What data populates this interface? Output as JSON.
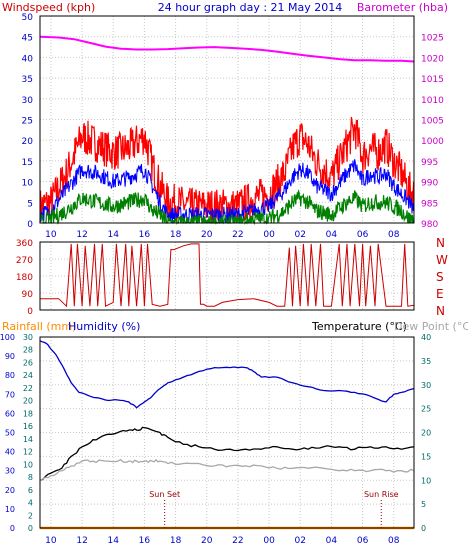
{
  "colors": {
    "background": "#ffffff",
    "plot_border": "#000000",
    "grid": "#c8c8c8",
    "wind_gust": "#ff0000",
    "wind_avg": "#0000ff",
    "wind_low": "#008000",
    "barometer": "#ff00ff",
    "direction": "#cc0000",
    "humidity": "#0000cc",
    "temperature": "#000000",
    "dew_point": "#a8a8a8",
    "rainfall": "#ff8c00",
    "sun_marker": "#990000",
    "axis_blue": "#0000cc",
    "axis_teal": "#006a6a",
    "axis_red": "#cc0000",
    "axis_magenta": "#cc00cc",
    "rain_label": "#ff8c00",
    "humidity_label": "#0000cc",
    "dew_label": "#a8a8a8"
  },
  "chart_data": [
    {
      "type": "line",
      "title": "24 hour graph day : 21 May 2014",
      "ylabel_left": "Windspeed (kph)",
      "ylabel_right": "Barometer (hba)",
      "ylim": [
        0,
        50
      ],
      "yticks": [
        0,
        5,
        10,
        15,
        20,
        25,
        30,
        35,
        40,
        45,
        50
      ],
      "ylim_right": [
        980,
        1030
      ],
      "yticks_right": [
        980,
        985,
        990,
        995,
        1000,
        1005,
        1010,
        1015,
        1020,
        1025
      ],
      "xticks": [
        "10",
        "12",
        "14",
        "16",
        "18",
        "20",
        "22",
        "00",
        "02",
        "04",
        "06",
        "08"
      ],
      "x_hours": [
        9.3,
        33.3
      ],
      "grid": true,
      "series": [
        {
          "key": "barometer",
          "axis": "right",
          "x": [
            9.3,
            10.5,
            11.5,
            12.5,
            13.5,
            14.5,
            15.5,
            16.5,
            17.5,
            18.5,
            19.5,
            20.5,
            21.5,
            22.5,
            23.5,
            24.5,
            25.5,
            26.5,
            27.5,
            28.5,
            29.5,
            30.5,
            31.5,
            32.5,
            33.3
          ],
          "values": [
            1025.0,
            1024.8,
            1024.4,
            1023.5,
            1022.6,
            1022.1,
            1021.9,
            1021.9,
            1022.0,
            1022.2,
            1022.4,
            1022.5,
            1022.3,
            1022.1,
            1021.8,
            1021.4,
            1020.9,
            1020.4,
            1020.0,
            1019.6,
            1019.3,
            1019.3,
            1019.2,
            1019.2,
            1019.0
          ]
        },
        {
          "key": "wind_gust",
          "axis": "left",
          "x": [
            9.3,
            10,
            11,
            12,
            13,
            14,
            15,
            16,
            16.5,
            17,
            17.5,
            18,
            19,
            20,
            21,
            22,
            23,
            24,
            25,
            25.5,
            26,
            26.5,
            27,
            28,
            29,
            29.5,
            30,
            30.5,
            31,
            31.5,
            32,
            32.5,
            33,
            33.3
          ],
          "values": [
            4,
            5,
            12,
            21,
            19,
            17,
            18,
            21,
            14,
            9,
            5,
            5,
            4,
            4,
            4,
            4,
            6,
            7,
            12,
            18,
            21,
            19,
            15,
            11,
            19,
            23,
            16,
            18,
            17,
            19,
            15,
            12,
            8,
            7
          ]
        },
        {
          "key": "wind_avg",
          "axis": "left",
          "x": [
            9.3,
            10,
            11,
            12,
            13,
            14,
            15,
            16,
            16.5,
            17,
            17.5,
            18,
            19,
            20,
            21,
            22,
            23,
            24,
            25,
            25.5,
            26,
            26.5,
            27,
            28,
            29,
            29.5,
            30,
            30.5,
            31,
            31.5,
            32,
            32.5,
            33,
            33.3
          ],
          "values": [
            2,
            3,
            8,
            13,
            12,
            10,
            11,
            13,
            9,
            5,
            2,
            2,
            2,
            2,
            2,
            2,
            3,
            4,
            8,
            11,
            13,
            12,
            9,
            7,
            12,
            14,
            10,
            12,
            11,
            12,
            9,
            7,
            5,
            3
          ]
        },
        {
          "key": "wind_low",
          "axis": "left",
          "x": [
            9.3,
            10,
            11,
            12,
            13,
            14,
            15,
            16,
            16.5,
            17,
            17.5,
            18,
            19,
            20,
            21,
            22,
            23,
            24,
            25,
            25.5,
            26,
            26.5,
            27,
            28,
            29,
            29.5,
            30,
            30.5,
            31,
            31.5,
            32,
            32.5,
            33,
            33.3
          ],
          "values": [
            0,
            1,
            3,
            6,
            5,
            4,
            5,
            6,
            3,
            2,
            0,
            0,
            0,
            0,
            0,
            0,
            1,
            1,
            3,
            5,
            6,
            5,
            3,
            2,
            5,
            6,
            4,
            5,
            5,
            5,
            4,
            3,
            1,
            1
          ]
        }
      ]
    },
    {
      "type": "line",
      "ylabel_right": [
        "N",
        "W",
        "S",
        "E",
        "N"
      ],
      "ylim": [
        0,
        360
      ],
      "yticks": [
        0,
        90,
        180,
        270,
        360
      ],
      "x_hours": [
        9.3,
        33.3
      ],
      "grid": true,
      "series": [
        {
          "key": "direction",
          "x": [
            9.3,
            10.5,
            11.0,
            11.3,
            11.5,
            11.7,
            12.0,
            12.2,
            12.5,
            12.8,
            13.0,
            13.3,
            13.5,
            14.0,
            14.2,
            14.5,
            14.8,
            15.0,
            15.2,
            15.5,
            15.8,
            16.0,
            16.2,
            16.5,
            17.0,
            17.5,
            17.7,
            17.9,
            18.5,
            19.0,
            19.5,
            19.6,
            19.8,
            20.0,
            20.5,
            21.0,
            22.0,
            23.0,
            24.0,
            24.5,
            25.0,
            25.3,
            25.5,
            25.7,
            26.0,
            26.2,
            26.5,
            26.7,
            27.0,
            27.3,
            27.5,
            28.0,
            28.5,
            28.7,
            29.0,
            29.2,
            29.5,
            29.8,
            30.0,
            30.2,
            30.5,
            30.8,
            31.0,
            31.5,
            32.0,
            32.5,
            32.7,
            32.9,
            33.3
          ],
          "values": [
            60,
            60,
            20,
            350,
            20,
            350,
            20,
            340,
            20,
            350,
            20,
            350,
            20,
            40,
            350,
            20,
            350,
            20,
            340,
            20,
            350,
            20,
            350,
            30,
            20,
            30,
            320,
            320,
            340,
            350,
            350,
            30,
            30,
            20,
            20,
            40,
            55,
            60,
            40,
            20,
            20,
            330,
            20,
            340,
            20,
            350,
            20,
            350,
            20,
            350,
            20,
            20,
            350,
            20,
            350,
            20,
            350,
            20,
            350,
            20,
            340,
            20,
            350,
            20,
            20,
            20,
            350,
            20,
            25
          ]
        }
      ]
    },
    {
      "type": "line",
      "ylabel_left_rain": "Rainfall (mm)",
      "ylabel_left_humidity": "Humidity (%)",
      "ylabel_right_temp": "Temperature (°C)",
      "ylabel_right_dew": "Dew Point (°C)",
      "rain_ticks": [
        0,
        2,
        4,
        6,
        8,
        10,
        12,
        14,
        16,
        18,
        20,
        22,
        24,
        26,
        28,
        30
      ],
      "humidity_ticks": [
        0,
        10,
        20,
        30,
        40,
        50,
        60,
        70,
        80,
        90,
        100
      ],
      "temp_ticks": [
        0,
        5,
        10,
        15,
        20,
        25,
        30,
        35,
        40
      ],
      "ylim_temp": [
        0,
        40
      ],
      "ylim_humidity": [
        0,
        100
      ],
      "ylim_rain": [
        0,
        30
      ],
      "x_hours": [
        9.3,
        33.3
      ],
      "xticks": [
        "10",
        "12",
        "14",
        "16",
        "18",
        "20",
        "22",
        "00",
        "02",
        "04",
        "06",
        "08"
      ],
      "grid": true,
      "annotations": [
        {
          "label": "Sun Set",
          "x": 17.3
        },
        {
          "label": "Sun Rise",
          "x": 31.2
        }
      ],
      "series": [
        {
          "key": "humidity",
          "axis": "humidity",
          "x": [
            9.3,
            9.8,
            10.3,
            10.8,
            11.3,
            11.8,
            12.5,
            13.5,
            14.3,
            15.0,
            15.5,
            16.0,
            16.5,
            17.0,
            17.5,
            18.5,
            19.5,
            20.5,
            21.5,
            22.5,
            23.0,
            23.5,
            24.5,
            25.5,
            26.5,
            27.5,
            28.5,
            29.5,
            30.5,
            31.5,
            32.0,
            32.5,
            33.3
          ],
          "values": [
            98,
            96,
            91,
            84,
            76,
            71,
            69,
            67,
            67,
            66,
            63,
            66,
            69,
            73,
            76,
            79,
            82,
            84,
            84,
            84,
            82,
            79,
            79,
            76,
            74,
            72,
            72,
            71,
            69,
            66,
            70,
            71,
            73
          ]
        },
        {
          "key": "temperature",
          "axis": "temp",
          "x": [
            9.3,
            10.0,
            10.7,
            11.3,
            12.0,
            12.7,
            13.5,
            14.3,
            15.0,
            15.5,
            16.0,
            16.5,
            17.0,
            17.5,
            18.5,
            19.5,
            20.5,
            21.5,
            22.5,
            23.5,
            24.5,
            25.5,
            26.5,
            27.5,
            28.5,
            29.5,
            30.5,
            31.5,
            32.5,
            33.3
          ],
          "values": [
            10,
            11.5,
            12.5,
            15,
            17,
            18.5,
            19.5,
            20,
            20.5,
            20.5,
            21,
            20.5,
            20,
            19,
            17.5,
            17,
            16.5,
            16.5,
            16.5,
            16.5,
            17,
            16.5,
            16.5,
            17,
            17,
            16.5,
            17,
            17,
            16.5,
            17
          ]
        },
        {
          "key": "dew_point",
          "axis": "temp",
          "x": [
            9.3,
            10.0,
            10.7,
            11.3,
            12.0,
            12.7,
            13.5,
            14.3,
            15.0,
            15.5,
            16.0,
            16.5,
            17.0,
            17.5,
            18.5,
            19.5,
            20.5,
            21.5,
            22.5,
            23.5,
            24.5,
            25.5,
            26.5,
            27.5,
            28.5,
            29.5,
            30.5,
            31.5,
            32.5,
            33.3
          ],
          "values": [
            10,
            11,
            12,
            13,
            14,
            14,
            14,
            14,
            14,
            14,
            14,
            14,
            14,
            13.5,
            13.5,
            13.5,
            13,
            13,
            13,
            13,
            12.5,
            12.5,
            12.5,
            12.5,
            12,
            12,
            12,
            12,
            12,
            12
          ]
        },
        {
          "key": "rainfall",
          "axis": "rain",
          "x": [
            9.3,
            33.3
          ],
          "values": [
            0,
            0
          ]
        }
      ]
    }
  ]
}
